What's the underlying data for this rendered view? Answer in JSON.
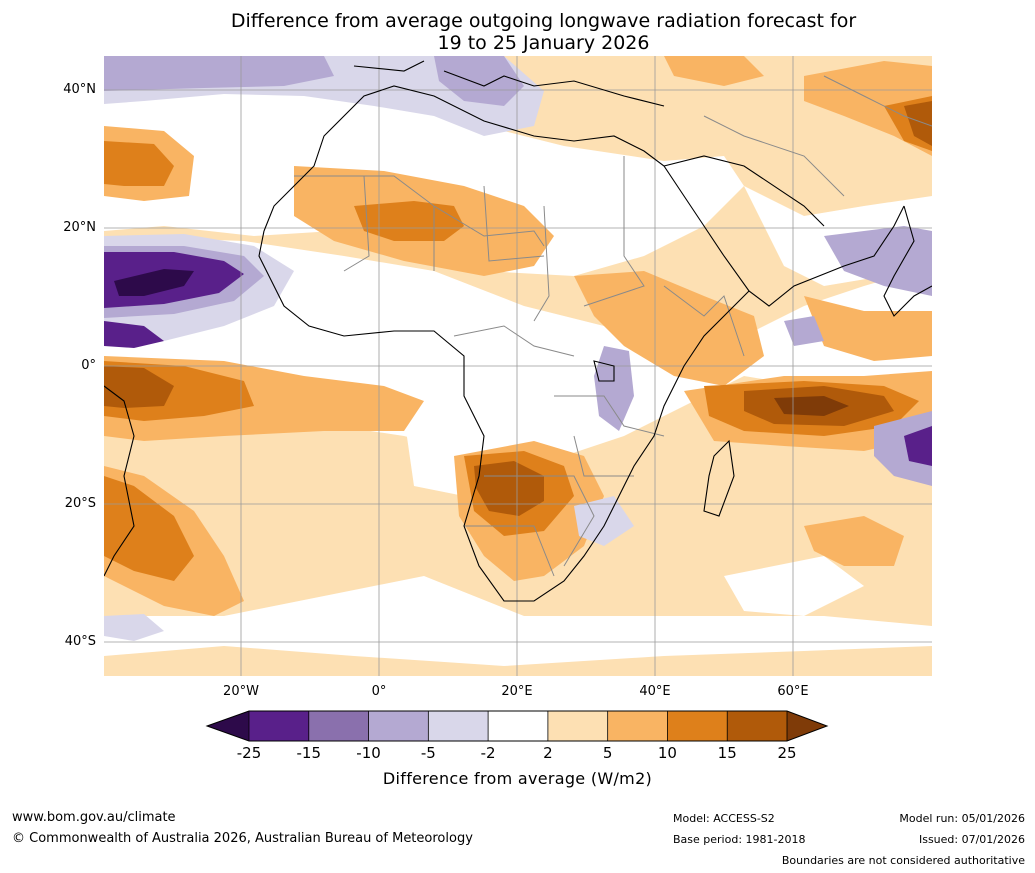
{
  "title": {
    "line1": "Difference from average outgoing longwave radiation forecast for",
    "line2": "19 to 25 January 2026"
  },
  "axes": {
    "lat_labels": [
      "40°N",
      "20°N",
      "0°",
      "20°S",
      "40°S"
    ],
    "lon_labels": [
      "20°W",
      "0°",
      "20°E",
      "40°E",
      "60°E"
    ]
  },
  "colorbar": {
    "ticks": [
      "-25",
      "-15",
      "-10",
      "-5",
      "-2",
      "2",
      "5",
      "10",
      "15",
      "25"
    ],
    "label": "Difference from average (W/m2)",
    "colors": [
      "#2d0a4a",
      "#59208a",
      "#8a70ad",
      "#b4a9d2",
      "#d9d7ea",
      "#ffffff",
      "#fde0b3",
      "#f9b463",
      "#de801b",
      "#b05a0a",
      "#7f3b08"
    ]
  },
  "footer": {
    "website": "www.bom.gov.au/climate",
    "copyright": "© Commonwealth of Australia 2026, Australian Bureau of Meteorology",
    "model": "Model: ACCESS-S2",
    "base_period": "Base period: 1981-2018",
    "model_run": "Model run: 05/01/2026",
    "issued": "Issued: 07/01/2026",
    "disclaimer": "Boundaries are not considered authoritative"
  }
}
